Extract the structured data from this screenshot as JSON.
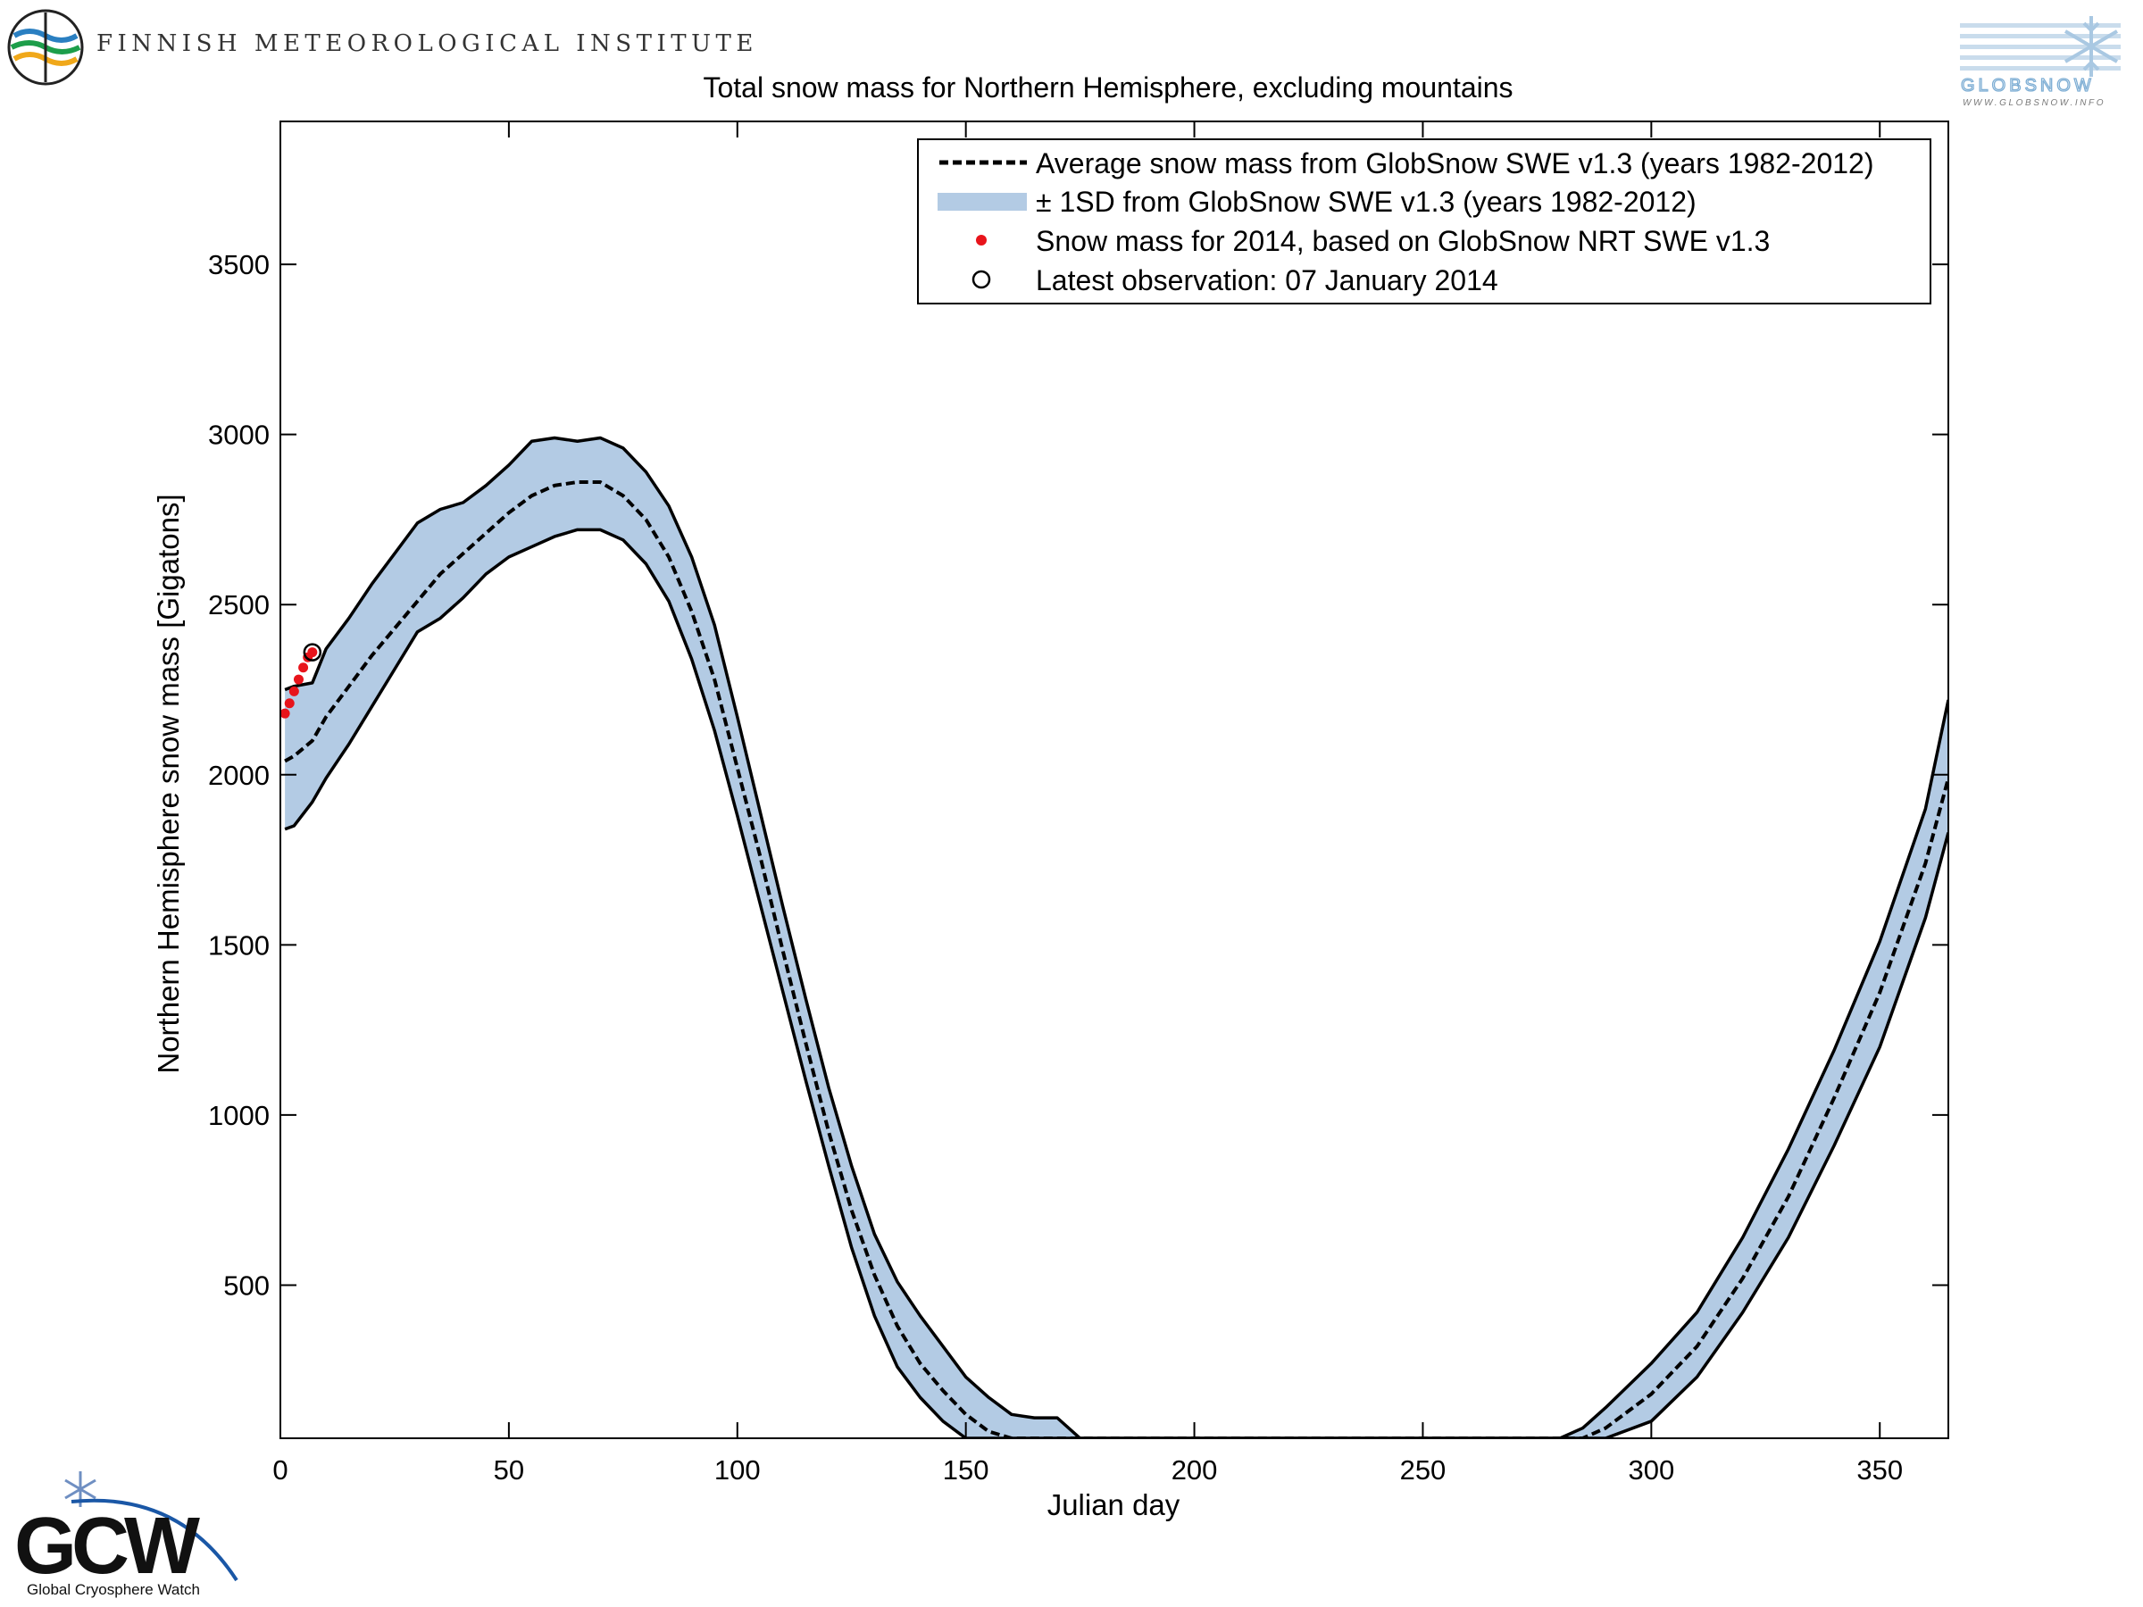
{
  "header": {
    "org_name": "FINNISH METEOROLOGICAL INSTITUTE",
    "globsnow_wordmark": "GLOBSNOW",
    "globsnow_url": "WWW.GLOBSNOW.INFO",
    "gcw_wordmark": "GCW",
    "gcw_caption": "Global Cryosphere Watch"
  },
  "colors": {
    "band_fill": "#b3cbe4",
    "mean_line": "#000000",
    "obs_points": "#e8141b",
    "frame": "#000000"
  },
  "chart_data": {
    "type": "line",
    "title": "Total snow mass for Northern Hemisphere, excluding mountains",
    "xlabel": "Julian day",
    "ylabel": "Northern Hemisphere snow mass [Gigatons]",
    "xlim": [
      0,
      365
    ],
    "ylim": [
      50,
      3920
    ],
    "x_ticks": [
      0,
      50,
      100,
      150,
      200,
      250,
      300,
      350
    ],
    "y_ticks": [
      500,
      1000,
      1500,
      2000,
      2500,
      3000,
      3500
    ],
    "grid": false,
    "legend_position": "top-right",
    "legend": [
      "Average snow mass from GlobSnow SWE v1.3 (years 1982-2012)",
      "± 1SD from GlobSnow SWE v1.3 (years 1982-2012)",
      "Snow mass for 2014, based on GlobSnow NRT SWE v1.3",
      "Latest observation: 07 January 2014"
    ],
    "average": {
      "x": [
        1,
        3,
        7,
        10,
        15,
        20,
        25,
        30,
        35,
        40,
        45,
        50,
        55,
        60,
        65,
        70,
        75,
        80,
        85,
        90,
        95,
        100,
        105,
        110,
        115,
        120,
        125,
        130,
        135,
        140,
        145,
        150,
        155,
        160,
        165,
        170,
        175,
        180,
        200,
        250,
        280,
        285,
        290,
        300,
        310,
        320,
        330,
        340,
        350,
        360,
        365
      ],
      "y": [
        2040,
        2055,
        2100,
        2170,
        2260,
        2350,
        2430,
        2510,
        2590,
        2650,
        2710,
        2770,
        2820,
        2850,
        2860,
        2860,
        2820,
        2750,
        2640,
        2480,
        2280,
        2020,
        1760,
        1480,
        1210,
        950,
        720,
        530,
        380,
        270,
        190,
        120,
        70,
        40,
        20,
        10,
        5,
        0,
        0,
        0,
        10,
        40,
        80,
        180,
        320,
        520,
        760,
        1050,
        1360,
        1740,
        1990
      ]
    },
    "plus_1sd": {
      "x": [
        1,
        3,
        7,
        10,
        15,
        20,
        25,
        30,
        35,
        40,
        45,
        50,
        55,
        60,
        65,
        70,
        75,
        80,
        85,
        90,
        95,
        100,
        105,
        110,
        115,
        120,
        125,
        130,
        135,
        140,
        145,
        150,
        155,
        160,
        165,
        170,
        175,
        180,
        200,
        250,
        280,
        285,
        290,
        300,
        310,
        320,
        330,
        340,
        350,
        360,
        365
      ],
      "y": [
        2250,
        2260,
        2270,
        2370,
        2460,
        2560,
        2650,
        2740,
        2780,
        2800,
        2850,
        2910,
        2980,
        2990,
        2980,
        2990,
        2960,
        2890,
        2790,
        2640,
        2440,
        2170,
        1890,
        1610,
        1340,
        1080,
        850,
        650,
        510,
        410,
        320,
        230,
        170,
        120,
        110,
        110,
        20,
        0,
        0,
        0,
        30,
        80,
        140,
        270,
        420,
        640,
        900,
        1190,
        1510,
        1900,
        2220
      ]
    },
    "minus_1sd": {
      "x": [
        1,
        3,
        7,
        10,
        15,
        20,
        25,
        30,
        35,
        40,
        45,
        50,
        55,
        60,
        65,
        70,
        75,
        80,
        85,
        90,
        95,
        100,
        105,
        110,
        115,
        120,
        125,
        130,
        135,
        140,
        145,
        150,
        155,
        160,
        165,
        170,
        175,
        180,
        200,
        250,
        280,
        285,
        290,
        300,
        310,
        320,
        330,
        340,
        350,
        360,
        365
      ],
      "y": [
        1840,
        1850,
        1920,
        1990,
        2090,
        2200,
        2310,
        2420,
        2460,
        2520,
        2590,
        2640,
        2670,
        2700,
        2720,
        2720,
        2690,
        2620,
        2510,
        2340,
        2130,
        1880,
        1620,
        1360,
        1100,
        850,
        610,
        410,
        260,
        170,
        100,
        50,
        10,
        0,
        0,
        0,
        0,
        0,
        0,
        0,
        0,
        10,
        30,
        100,
        230,
        420,
        640,
        910,
        1200,
        1580,
        1830
      ]
    },
    "snow_mass_2014": {
      "x": [
        1,
        2,
        3,
        4,
        5,
        6,
        7
      ],
      "y": [
        2180,
        2210,
        2245,
        2280,
        2315,
        2345,
        2360
      ]
    },
    "latest_observation": {
      "x": 7,
      "y": 2360
    }
  }
}
